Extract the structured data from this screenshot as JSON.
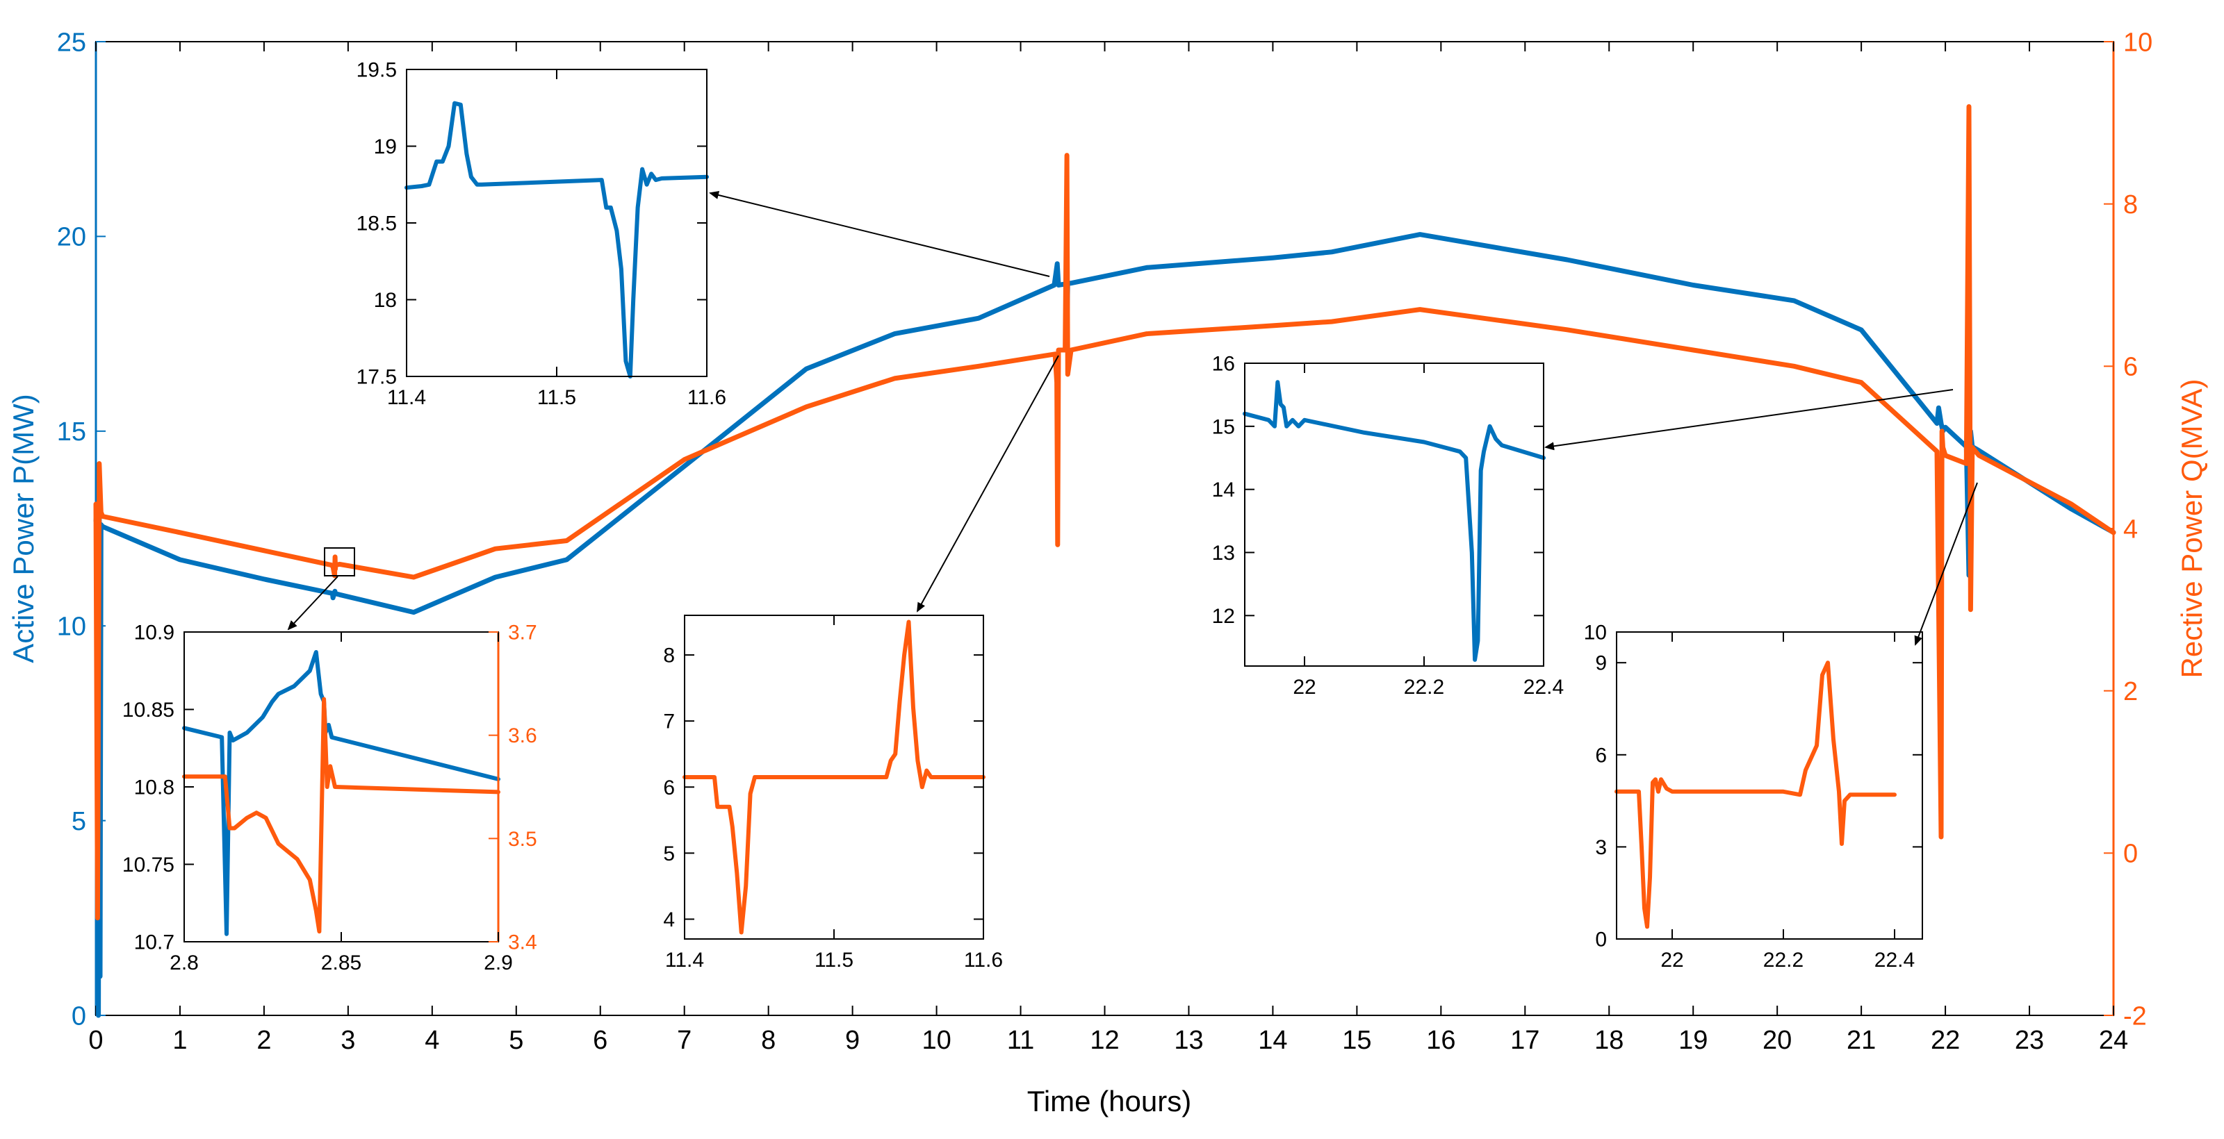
{
  "colors": {
    "blue": "#0072BD",
    "orange": "#FF5A0D",
    "axis": "#000000",
    "arrow": "#000000"
  },
  "chart_data": [
    {
      "id": "main",
      "type": "line",
      "title": "",
      "xlabel": "Time (hours)",
      "ylabel_left": "Active Power P(MW)",
      "ylabel_right": "Rective Power Q(MVA)",
      "xlim": [
        0,
        24
      ],
      "ylim_left": [
        0,
        25
      ],
      "ylim_right": [
        -2,
        10
      ],
      "xticks": [
        "0",
        "1",
        "2",
        "3",
        "4",
        "5",
        "6",
        "7",
        "8",
        "9",
        "10",
        "11",
        "12",
        "13",
        "14",
        "15",
        "16",
        "17",
        "18",
        "19",
        "20",
        "21",
        "22",
        "23",
        "24"
      ],
      "yticks_left": [
        "0",
        "5",
        "10",
        "15",
        "20",
        "25"
      ],
      "yticks_right": [
        "-2",
        "0",
        "2",
        "4",
        "6",
        "8",
        "10"
      ],
      "grid": false,
      "series": [
        {
          "name": "Active Power P",
          "axis": "left",
          "color": "#0072BD",
          "x": [
            0,
            0.02,
            0.03,
            0.04,
            0.05,
            0.06,
            0.08,
            1.0,
            2.0,
            2.8,
            2.815,
            2.82,
            2.843,
            2.85,
            2.9,
            3.78,
            4.75,
            5.6,
            7.0,
            8.45,
            9.5,
            10.5,
            11.4,
            11.435,
            11.45,
            11.535,
            11.55,
            11.56,
            11.6,
            12.5,
            14.0,
            14.7,
            15.75,
            17.5,
            19.0,
            20.2,
            21.0,
            21.9,
            21.92,
            21.95,
            21.97,
            22.0,
            22.25,
            22.28,
            22.3,
            22.32,
            22.4,
            23.5,
            24.0
          ],
          "y": [
            12.7,
            13.1,
            0.0,
            13.5,
            1.0,
            12.6,
            12.55,
            11.7,
            11.2,
            10.84,
            10.82,
            10.72,
            10.89,
            10.83,
            10.8,
            10.35,
            11.25,
            11.7,
            14.1,
            16.6,
            17.5,
            17.9,
            18.75,
            19.3,
            18.75,
            18.78,
            17.6,
            18.8,
            18.8,
            19.2,
            19.45,
            19.6,
            20.05,
            19.4,
            18.75,
            18.35,
            17.6,
            15.2,
            15.6,
            15.2,
            15.0,
            15.1,
            14.6,
            11.3,
            15.0,
            14.6,
            14.5,
            13.0,
            12.4
          ]
        },
        {
          "name": "Rective Power Q",
          "axis": "right",
          "color": "#FF5A0D",
          "x": [
            0,
            0.02,
            0.04,
            0.06,
            0.08,
            1.0,
            2.8,
            2.82,
            2.84,
            2.845,
            2.848,
            2.85,
            2.9,
            3.78,
            4.75,
            5.6,
            7.0,
            8.45,
            9.5,
            10.5,
            11.41,
            11.43,
            11.44,
            11.45,
            11.53,
            11.55,
            11.56,
            11.6,
            12.5,
            14.0,
            14.7,
            15.75,
            17.5,
            19.0,
            20.2,
            21.0,
            21.9,
            21.95,
            21.96,
            21.97,
            22.0,
            22.25,
            22.28,
            22.3,
            22.32,
            22.4,
            23.5,
            24.0
          ],
          "y": [
            4.3,
            -0.8,
            4.8,
            4.2,
            4.15,
            3.95,
            3.55,
            3.53,
            3.42,
            3.65,
            3.5,
            3.55,
            3.56,
            3.4,
            3.75,
            3.85,
            4.85,
            5.5,
            5.85,
            6.0,
            6.15,
            5.8,
            3.8,
            6.2,
            6.2,
            8.6,
            5.9,
            6.2,
            6.4,
            6.5,
            6.55,
            6.7,
            6.45,
            6.2,
            6.0,
            5.8,
            4.95,
            0.2,
            5.2,
            5.0,
            4.9,
            4.8,
            9.2,
            3.0,
            5.0,
            4.9,
            4.3,
            3.95
          ]
        }
      ]
    },
    {
      "id": "inset-p1",
      "type": "line",
      "xlim": [
        11.4,
        11.6
      ],
      "ylim_left": [
        17.5,
        19.5
      ],
      "xticks": [
        "11.4",
        "11.5",
        "11.6"
      ],
      "yticks_left": [
        "17.5",
        "18",
        "18.5",
        "19",
        "19.5"
      ],
      "series": [
        {
          "name": "Active Power P",
          "axis": "left",
          "color": "#0072BD",
          "x": [
            11.4,
            11.41,
            11.415,
            11.42,
            11.424,
            11.428,
            11.432,
            11.436,
            11.44,
            11.443,
            11.447,
            11.45,
            11.53,
            11.533,
            11.536,
            11.54,
            11.543,
            11.546,
            11.549,
            11.551,
            11.554,
            11.557,
            11.56,
            11.563,
            11.566,
            11.57,
            11.6
          ],
          "y": [
            18.73,
            18.74,
            18.75,
            18.9,
            18.9,
            19.0,
            19.28,
            19.27,
            18.95,
            18.8,
            18.75,
            18.75,
            18.78,
            18.6,
            18.6,
            18.45,
            18.2,
            17.6,
            17.5,
            18.0,
            18.6,
            18.85,
            18.75,
            18.82,
            18.78,
            18.79,
            18.8
          ]
        }
      ]
    },
    {
      "id": "inset-q1",
      "type": "line",
      "xlim": [
        11.4,
        11.6
      ],
      "ylim_left": [
        3.7,
        8.6
      ],
      "xticks": [
        "11.4",
        "11.5",
        "11.6"
      ],
      "yticks_left": [
        "4",
        "5",
        "6",
        "7",
        "8"
      ],
      "series": [
        {
          "name": "Rective Power Q",
          "axis": "left",
          "color": "#FF5A0D",
          "x": [
            11.4,
            11.42,
            11.422,
            11.43,
            11.432,
            11.435,
            11.438,
            11.441,
            11.444,
            11.447,
            11.45,
            11.455,
            11.535,
            11.538,
            11.541,
            11.544,
            11.547,
            11.55,
            11.553,
            11.556,
            11.559,
            11.562,
            11.565,
            11.6
          ],
          "y": [
            6.15,
            6.15,
            5.7,
            5.7,
            5.4,
            4.7,
            3.8,
            4.5,
            5.9,
            6.15,
            6.15,
            6.15,
            6.15,
            6.4,
            6.5,
            7.3,
            8.0,
            8.5,
            7.2,
            6.4,
            6.0,
            6.25,
            6.15,
            6.15
          ]
        }
      ]
    },
    {
      "id": "inset-pq-2.8",
      "type": "line",
      "xlim": [
        2.8,
        2.9
      ],
      "ylim_left": [
        10.7,
        10.9
      ],
      "ylim_right": [
        3.4,
        3.7
      ],
      "xticks": [
        "2.8",
        "2.85",
        "2.9"
      ],
      "yticks_left": [
        "10.7",
        "10.75",
        "10.8",
        "10.85",
        "10.9"
      ],
      "yticks_right": [
        "3.4",
        "3.5",
        "3.6",
        "3.7"
      ],
      "series": [
        {
          "name": "Active Power P",
          "axis": "left",
          "color": "#0072BD",
          "x": [
            2.8,
            2.812,
            2.8135,
            2.8145,
            2.8155,
            2.82,
            2.825,
            2.828,
            2.83,
            2.835,
            2.84,
            2.842,
            2.8435,
            2.8445,
            2.845,
            2.846,
            2.847,
            2.9
          ],
          "y": [
            10.838,
            10.832,
            10.705,
            10.835,
            10.83,
            10.835,
            10.845,
            10.855,
            10.86,
            10.865,
            10.875,
            10.887,
            10.86,
            10.855,
            10.835,
            10.84,
            10.832,
            10.805
          ]
        },
        {
          "name": "Rective Power Q",
          "axis": "right",
          "color": "#FF5A0D",
          "x": [
            2.8,
            2.813,
            2.8145,
            2.816,
            2.82,
            2.823,
            2.826,
            2.83,
            2.836,
            2.84,
            2.842,
            2.843,
            2.8445,
            2.8455,
            2.8465,
            2.848,
            2.9
          ],
          "y": [
            3.56,
            3.56,
            3.51,
            3.51,
            3.52,
            3.525,
            3.52,
            3.495,
            3.48,
            3.46,
            3.43,
            3.41,
            3.635,
            3.55,
            3.57,
            3.55,
            3.545
          ]
        }
      ]
    },
    {
      "id": "inset-p2",
      "type": "line",
      "xlim": [
        21.9,
        22.4
      ],
      "ylim_left": [
        11.2,
        16
      ],
      "xticks": [
        "22",
        "22.2",
        "22.4"
      ],
      "yticks_left": [
        "12",
        "13",
        "14",
        "15",
        "16"
      ],
      "series": [
        {
          "name": "Active Power P",
          "axis": "left",
          "color": "#0072BD",
          "x": [
            21.9,
            21.94,
            21.95,
            21.955,
            21.96,
            21.965,
            21.97,
            21.975,
            21.98,
            21.99,
            22.0,
            22.1,
            22.2,
            22.26,
            22.27,
            22.28,
            22.285,
            22.29,
            22.295,
            22.3,
            22.31,
            22.32,
            22.33,
            22.4
          ],
          "y": [
            15.2,
            15.1,
            15.0,
            15.7,
            15.35,
            15.3,
            15.0,
            15.05,
            15.1,
            15.0,
            15.1,
            14.9,
            14.75,
            14.6,
            14.5,
            13.0,
            11.3,
            11.6,
            14.3,
            14.6,
            15.0,
            14.8,
            14.7,
            14.5
          ]
        }
      ]
    },
    {
      "id": "inset-q2",
      "type": "line",
      "xlim": [
        21.9,
        22.45
      ],
      "ylim_left": [
        0,
        10
      ],
      "xticks": [
        "22",
        "22.2",
        "22.4"
      ],
      "yticks_left": [
        "0",
        "3",
        "6",
        "9",
        "10"
      ],
      "series": [
        {
          "name": "Rective Power Q",
          "axis": "left",
          "color": "#FF5A0D",
          "x": [
            21.9,
            21.94,
            21.945,
            21.95,
            21.955,
            21.96,
            21.965,
            21.97,
            21.975,
            21.98,
            21.99,
            22.0,
            22.2,
            22.23,
            22.24,
            22.26,
            22.27,
            22.28,
            22.29,
            22.3,
            22.305,
            22.31,
            22.32,
            22.4
          ],
          "y": [
            4.8,
            4.8,
            3.0,
            1.0,
            0.4,
            2.0,
            5.1,
            5.2,
            4.8,
            5.2,
            4.9,
            4.8,
            4.8,
            4.7,
            5.5,
            6.3,
            8.6,
            9.0,
            6.5,
            4.8,
            3.1,
            4.5,
            4.7,
            4.7
          ]
        }
      ]
    }
  ]
}
